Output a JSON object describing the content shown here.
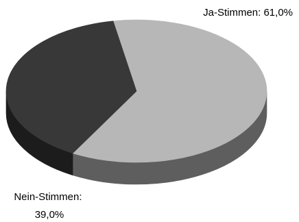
{
  "chart_data": {
    "type": "pie",
    "style": "3d",
    "title": "",
    "slices": [
      {
        "name": "Ja-Stimmen",
        "value": 61.0,
        "label_lines": [
          "Ja-Stimmen: 61,0%"
        ],
        "top_color": "#b7b7b7",
        "side_color": "#5e5e5e"
      },
      {
        "name": "Nein-Stimmen",
        "value": 39.0,
        "label_lines": [
          "Nein-Stimmen:",
          "39,0%"
        ],
        "top_color": "#383838",
        "side_color": "#1c1c1c"
      }
    ],
    "legend": "none",
    "grid": false
  }
}
